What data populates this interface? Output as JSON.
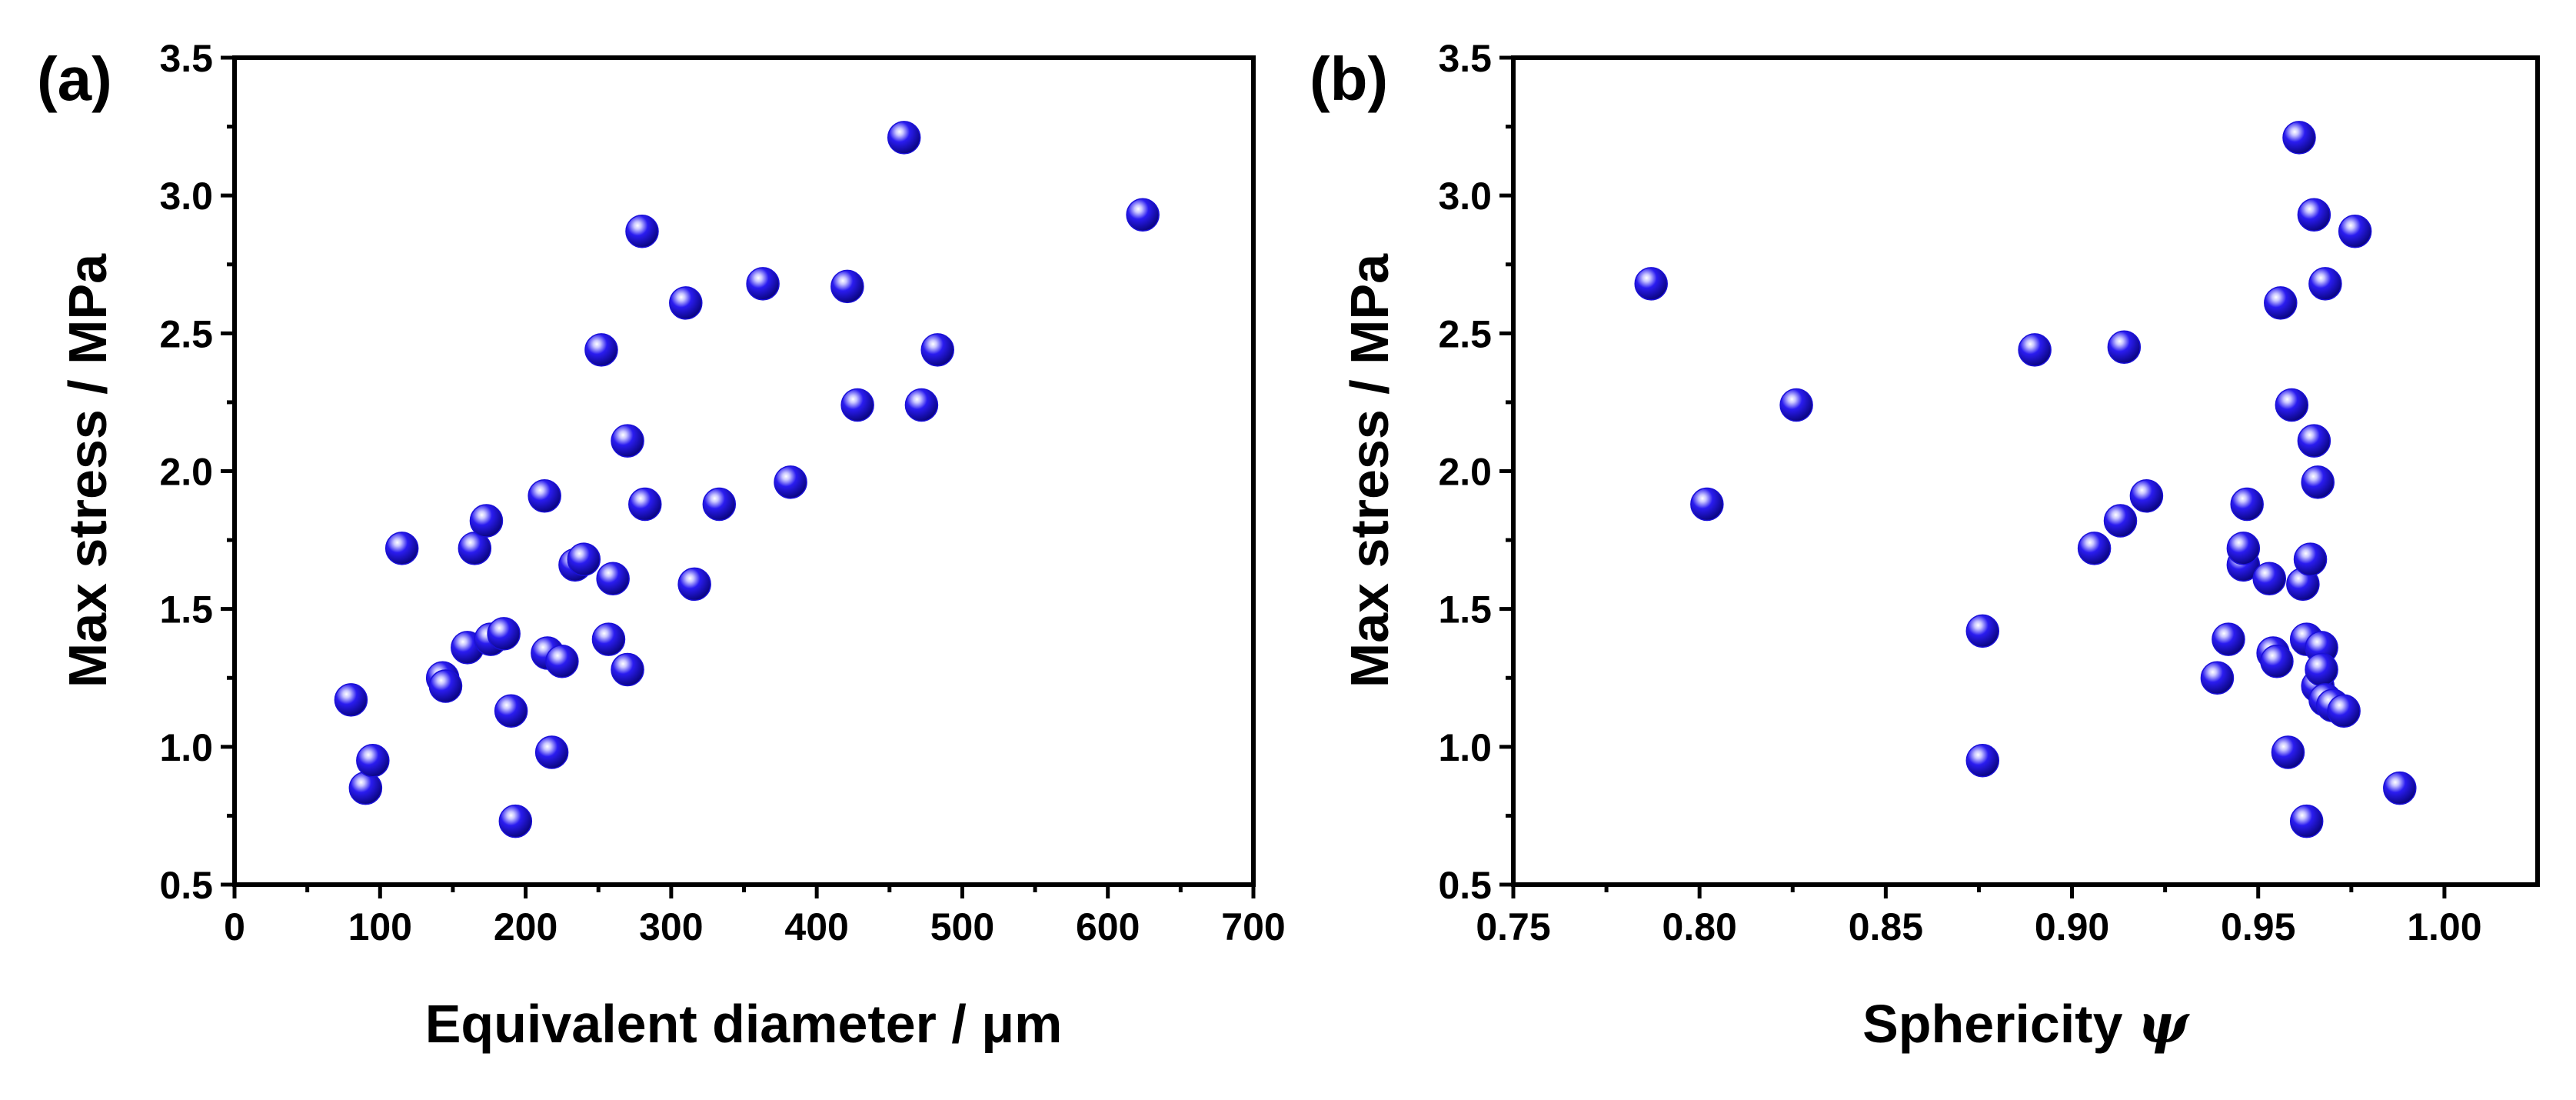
{
  "chart_data": [
    {
      "type": "scatter",
      "panel_label": "(a)",
      "xlabel": "Equivalent diameter / μm",
      "ylabel": "Max stress / MPa",
      "xlim": [
        0,
        700
      ],
      "ylim": [
        0.5,
        3.5
      ],
      "xticks": [
        0,
        100,
        200,
        300,
        400,
        500,
        600,
        700
      ],
      "yticks": [
        0.5,
        1.0,
        1.5,
        2.0,
        2.5,
        3.0,
        3.5
      ],
      "xtick_labels": [
        "0",
        "100",
        "200",
        "300",
        "400",
        "500",
        "600",
        "700"
      ],
      "ytick_labels": [
        "0.5",
        "1.0",
        "1.5",
        "2.0",
        "2.5",
        "3.0",
        "3.5"
      ],
      "marker_color": "#1a10d8",
      "series": [
        {
          "x": [
            80,
            90,
            95,
            115,
            143,
            145,
            160,
            165,
            173,
            176,
            185,
            190,
            193,
            213,
            215,
            218,
            225,
            234,
            240,
            252,
            257,
            260,
            270,
            270,
            280,
            282,
            310,
            316,
            333,
            363,
            382,
            421,
            428,
            460,
            472,
            483,
            624
          ],
          "y": [
            1.17,
            0.85,
            0.95,
            1.72,
            1.25,
            1.22,
            1.36,
            1.72,
            1.82,
            1.39,
            1.41,
            1.13,
            0.73,
            1.91,
            1.34,
            0.98,
            1.31,
            1.66,
            1.68,
            2.44,
            1.39,
            1.61,
            2.11,
            1.28,
            2.87,
            1.88,
            2.61,
            1.59,
            1.88,
            2.68,
            1.96,
            2.67,
            2.24,
            3.21,
            2.24,
            2.44,
            2.93
          ]
        }
      ]
    },
    {
      "type": "scatter",
      "panel_label": "(b)",
      "xlabel": "Sphericity",
      "xlabel_symbol": "ψ",
      "ylabel": "Max stress / MPa",
      "xlim": [
        0.75,
        1.025
      ],
      "ylim": [
        0.5,
        3.5
      ],
      "xticks": [
        0.75,
        0.8,
        0.85,
        0.9,
        0.95,
        1.0
      ],
      "yticks": [
        0.5,
        1.0,
        1.5,
        2.0,
        2.5,
        3.0,
        3.5
      ],
      "xtick_labels": [
        "0.75",
        "0.80",
        "0.85",
        "0.90",
        "0.95",
        "1.00"
      ],
      "ytick_labels": [
        "0.5",
        "1.0",
        "1.5",
        "2.0",
        "2.5",
        "3.0",
        "3.5"
      ],
      "marker_color": "#1a10d8",
      "series": [
        {
          "x": [
            0.787,
            0.802,
            0.826,
            0.876,
            0.876,
            0.89,
            0.906,
            0.913,
            0.914,
            0.92,
            0.939,
            0.942,
            0.946,
            0.946,
            0.947,
            0.953,
            0.954,
            0.955,
            0.956,
            0.958,
            0.959,
            0.961,
            0.962,
            0.963,
            0.963,
            0.964,
            0.965,
            0.965,
            0.966,
            0.966,
            0.967,
            0.967,
            0.968,
            0.968,
            0.97,
            0.973,
            0.976,
            0.988
          ],
          "y": [
            2.68,
            1.88,
            2.24,
            1.42,
            0.95,
            2.44,
            1.72,
            1.82,
            2.45,
            1.91,
            1.25,
            1.39,
            1.66,
            1.72,
            1.88,
            1.61,
            1.34,
            1.31,
            2.61,
            0.98,
            2.24,
            3.21,
            1.59,
            1.39,
            0.73,
            1.68,
            2.11,
            2.93,
            1.96,
            1.22,
            1.36,
            1.28,
            1.17,
            2.68,
            1.15,
            1.13,
            2.87,
            0.85
          ]
        }
      ]
    }
  ]
}
